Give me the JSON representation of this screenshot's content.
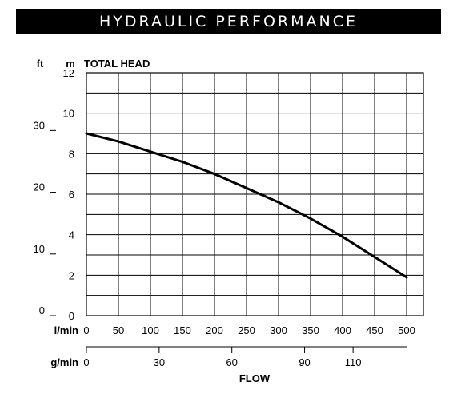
{
  "banner": {
    "title": "HYDRAULIC PERFORMANCE"
  },
  "chart_data": {
    "type": "line",
    "ylabel": "TOTAL HEAD",
    "xlabel": "FLOW",
    "y_unit_primary": "m",
    "y_unit_secondary": "ft",
    "x_unit_primary": "l/min",
    "x_unit_secondary": "g/min",
    "ylim": [
      0,
      12
    ],
    "xlim": [
      0,
      500
    ],
    "grid": true,
    "y_ticks_m": [
      0,
      2,
      4,
      6,
      8,
      10,
      12
    ],
    "y_ticks_ft": [
      0,
      10,
      20,
      30
    ],
    "x_ticks_lmin": [
      0,
      50,
      100,
      150,
      200,
      250,
      300,
      350,
      400,
      450,
      500
    ],
    "x_ticks_gmin": [
      0,
      30,
      60,
      90,
      110
    ],
    "series": [
      {
        "x": [
          0,
          50,
          100,
          150,
          200,
          250,
          300,
          350,
          400,
          450,
          500
        ],
        "y": [
          9.0,
          8.6,
          8.1,
          7.6,
          7.0,
          6.3,
          5.6,
          4.8,
          3.9,
          2.9,
          1.9
        ]
      }
    ]
  }
}
